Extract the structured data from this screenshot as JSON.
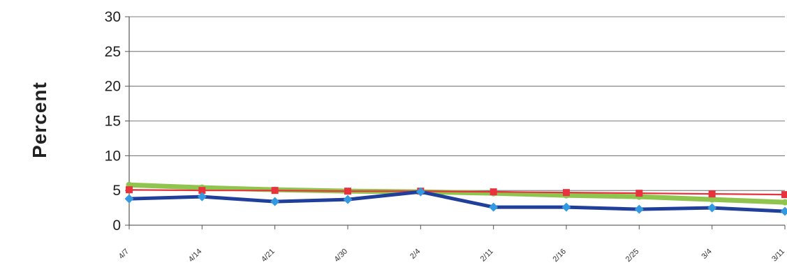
{
  "chart_data": {
    "type": "line",
    "title": "",
    "xlabel": "",
    "ylabel": "Percent",
    "ylim": [
      0,
      30
    ],
    "yticks": [
      "0",
      "5",
      "10",
      "15",
      "20",
      "25",
      "30"
    ],
    "grid": true,
    "categories": [
      "4/7",
      "4/14",
      "4/21",
      "4/30",
      "2/4",
      "2/11",
      "2/16",
      "2/25",
      "3/4",
      "3/11"
    ],
    "series": [
      {
        "color": "#8fc44f",
        "values": [
          5.8,
          5.4,
          5.1,
          4.9,
          4.8,
          4.6,
          4.3,
          4.1,
          3.7,
          3.3
        ]
      },
      {
        "color": "#e8323e",
        "values": [
          5.1,
          5.0,
          5.0,
          4.9,
          4.9,
          4.8,
          4.7,
          4.6,
          4.5,
          4.4
        ]
      },
      {
        "color": "#1f3f9a",
        "marker_color": "#3399e0",
        "values": [
          3.8,
          4.1,
          3.4,
          3.7,
          4.8,
          2.6,
          2.6,
          2.3,
          2.5,
          2.0
        ]
      }
    ]
  }
}
